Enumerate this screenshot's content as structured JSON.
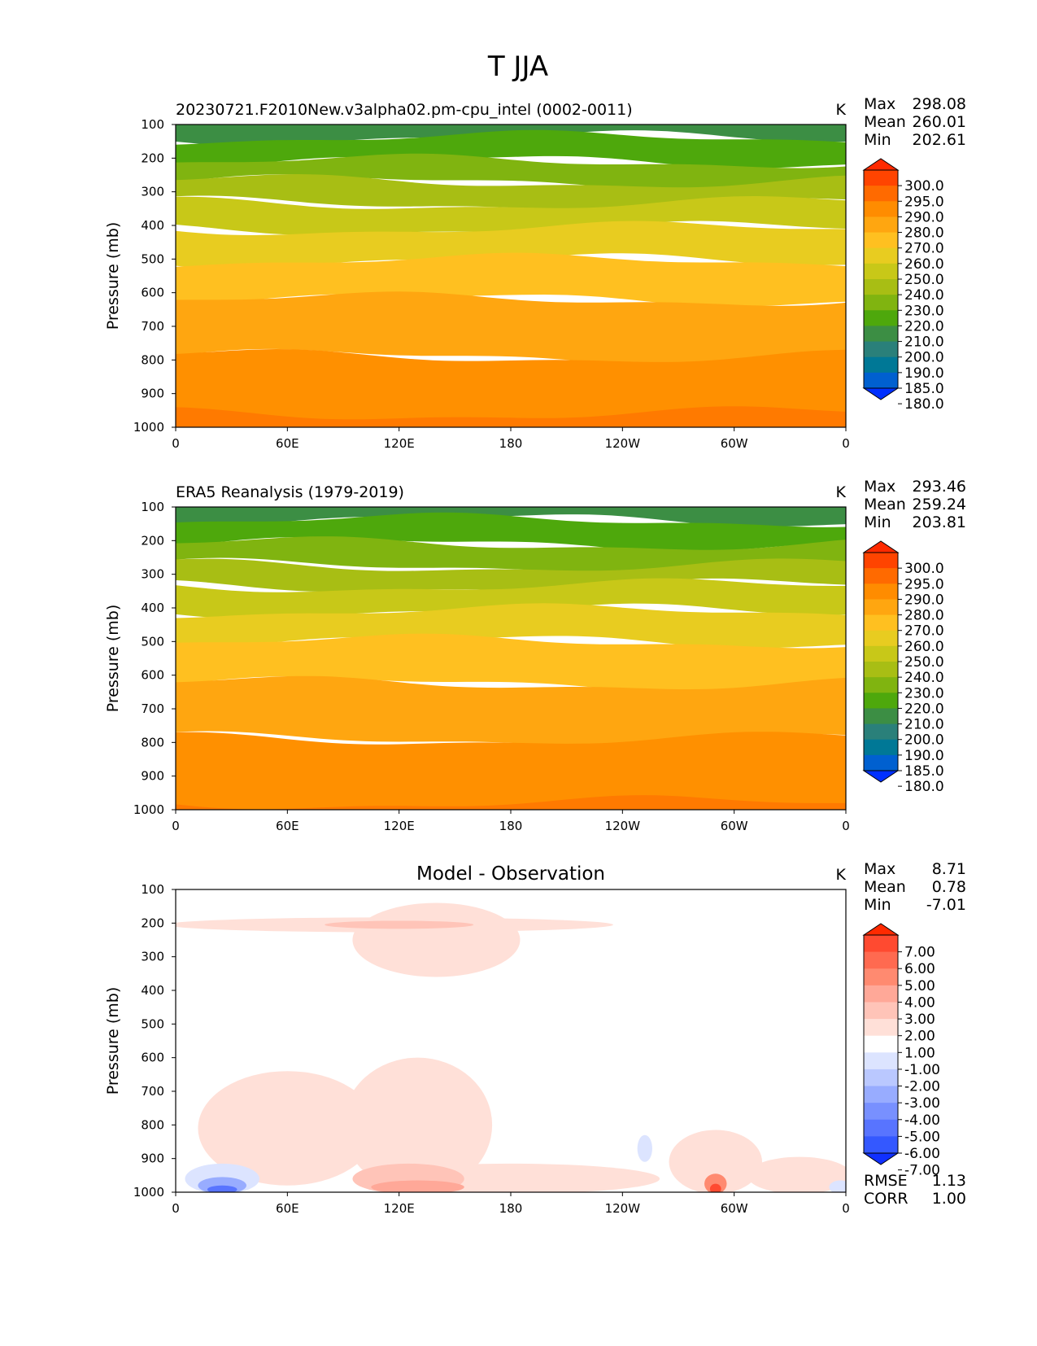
{
  "figure": {
    "title": "T JJA"
  },
  "chart_data": [
    {
      "type": "heatmap",
      "title": "20230721.F2010New.v3alpha02.pm-cpu_intel (0002-0011)",
      "units": "K",
      "ylabel": "Pressure (mb)",
      "xlabel": "",
      "xticks": [
        "0",
        "60E",
        "120E",
        "180",
        "120W",
        "60W",
        "0"
      ],
      "yticks": [
        "100",
        "200",
        "300",
        "400",
        "500",
        "600",
        "700",
        "800",
        "900",
        "1000"
      ],
      "ylim": [
        100,
        1000
      ],
      "stats": {
        "Max": "298.08",
        "Mean": "260.01",
        "Min": "202.61"
      },
      "stat_labels": {
        "max": "Max",
        "mean": "Mean",
        "min": "Min"
      },
      "colorbar_labels": [
        "300.0",
        "295.0",
        "290.0",
        "280.0",
        "270.0",
        "260.0",
        "250.0",
        "240.0",
        "230.0",
        "220.0",
        "210.0",
        "200.0",
        "190.0",
        "185.0",
        "180.0"
      ],
      "colorbar_colors": [
        "#ff2a00",
        "#ff4400",
        "#ff6a00",
        "#ff8c00",
        "#ffa610",
        "#ffc020",
        "#e8cc20",
        "#c8c818",
        "#a8be14",
        "#80b410",
        "#4ea80c",
        "#3c8e44",
        "#2a807a",
        "#007896",
        "#0060d0",
        "#0030ff"
      ],
      "bands": [
        {
          "top": 100,
          "bottom": 140,
          "color": "#3c8e44"
        },
        {
          "top": 140,
          "bottom": 210,
          "color": "#4ea80c"
        },
        {
          "top": 210,
          "bottom": 270,
          "color": "#80b410"
        },
        {
          "top": 270,
          "bottom": 335,
          "color": "#a8be14"
        },
        {
          "top": 335,
          "bottom": 410,
          "color": "#c8c818"
        },
        {
          "top": 410,
          "bottom": 505,
          "color": "#e8cc20"
        },
        {
          "top": 505,
          "bottom": 620,
          "color": "#ffc020"
        },
        {
          "top": 620,
          "bottom": 790,
          "color": "#ffa610"
        },
        {
          "top": 790,
          "bottom": 1000,
          "color": "#ff9000"
        },
        {
          "top": 960,
          "bottom": 1000,
          "color": "#ff7a00"
        }
      ]
    },
    {
      "type": "heatmap",
      "title": "ERA5 Reanalysis (1979-2019)",
      "units": "K",
      "ylabel": "Pressure (mb)",
      "xlabel": "",
      "xticks": [
        "0",
        "60E",
        "120E",
        "180",
        "120W",
        "60W",
        "0"
      ],
      "yticks": [
        "100",
        "200",
        "300",
        "400",
        "500",
        "600",
        "700",
        "800",
        "900",
        "1000"
      ],
      "ylim": [
        100,
        1000
      ],
      "stats": {
        "Max": "293.46",
        "Mean": "259.24",
        "Min": "203.81"
      },
      "stat_labels": {
        "max": "Max",
        "mean": "Mean",
        "min": "Min"
      },
      "colorbar_labels": [
        "300.0",
        "295.0",
        "290.0",
        "280.0",
        "270.0",
        "260.0",
        "250.0",
        "240.0",
        "230.0",
        "220.0",
        "210.0",
        "200.0",
        "190.0",
        "185.0",
        "180.0"
      ],
      "colorbar_colors": [
        "#ff2a00",
        "#ff4400",
        "#ff6a00",
        "#ff8c00",
        "#ffa610",
        "#ffc020",
        "#e8cc20",
        "#c8c818",
        "#a8be14",
        "#80b410",
        "#4ea80c",
        "#3c8e44",
        "#2a807a",
        "#007896",
        "#0060d0",
        "#0030ff"
      ],
      "bands": [
        {
          "top": 100,
          "bottom": 140,
          "color": "#3c8e44"
        },
        {
          "top": 140,
          "bottom": 210,
          "color": "#4ea80c"
        },
        {
          "top": 210,
          "bottom": 275,
          "color": "#80b410"
        },
        {
          "top": 275,
          "bottom": 335,
          "color": "#a8be14"
        },
        {
          "top": 335,
          "bottom": 410,
          "color": "#c8c818"
        },
        {
          "top": 410,
          "bottom": 500,
          "color": "#e8cc20"
        },
        {
          "top": 500,
          "bottom": 625,
          "color": "#ffc020"
        },
        {
          "top": 625,
          "bottom": 790,
          "color": "#ffa610"
        },
        {
          "top": 790,
          "bottom": 1000,
          "color": "#ff9000"
        },
        {
          "top": 980,
          "bottom": 1000,
          "color": "#ff7a00"
        }
      ]
    },
    {
      "type": "heatmap",
      "title": "Model - Observation",
      "units": "K",
      "ylabel": "Pressure (mb)",
      "xlabel": "",
      "xticks": [
        "0",
        "60E",
        "120E",
        "180",
        "120W",
        "60W",
        "0"
      ],
      "yticks": [
        "100",
        "200",
        "300",
        "400",
        "500",
        "600",
        "700",
        "800",
        "900",
        "1000"
      ],
      "ylim": [
        100,
        1000
      ],
      "stats": {
        "Max": "8.71",
        "Mean": "0.78",
        "Min": "-7.01"
      },
      "stat_labels": {
        "max": "Max",
        "mean": "Mean",
        "min": "Min"
      },
      "metrics": {
        "RMSE": "1.13",
        "CORR": "1.00"
      },
      "metric_labels": {
        "rmse": "RMSE",
        "corr": "CORR"
      },
      "colorbar_labels": [
        "7.00",
        "6.00",
        "5.00",
        "4.00",
        "3.00",
        "2.00",
        "1.00",
        "-1.00",
        "-2.00",
        "-3.00",
        "-4.00",
        "-5.00",
        "-6.00",
        "-7.00"
      ],
      "colorbar_colors": [
        "#ff2a00",
        "#ff4a30",
        "#ff6a50",
        "#ff8a70",
        "#ffa898",
        "#ffc4b8",
        "#ffe0d8",
        "#ffffff",
        "#dce4ff",
        "#bac8ff",
        "#98acff",
        "#7890ff",
        "#5874ff",
        "#3458ff",
        "#1030ff"
      ]
    }
  ]
}
